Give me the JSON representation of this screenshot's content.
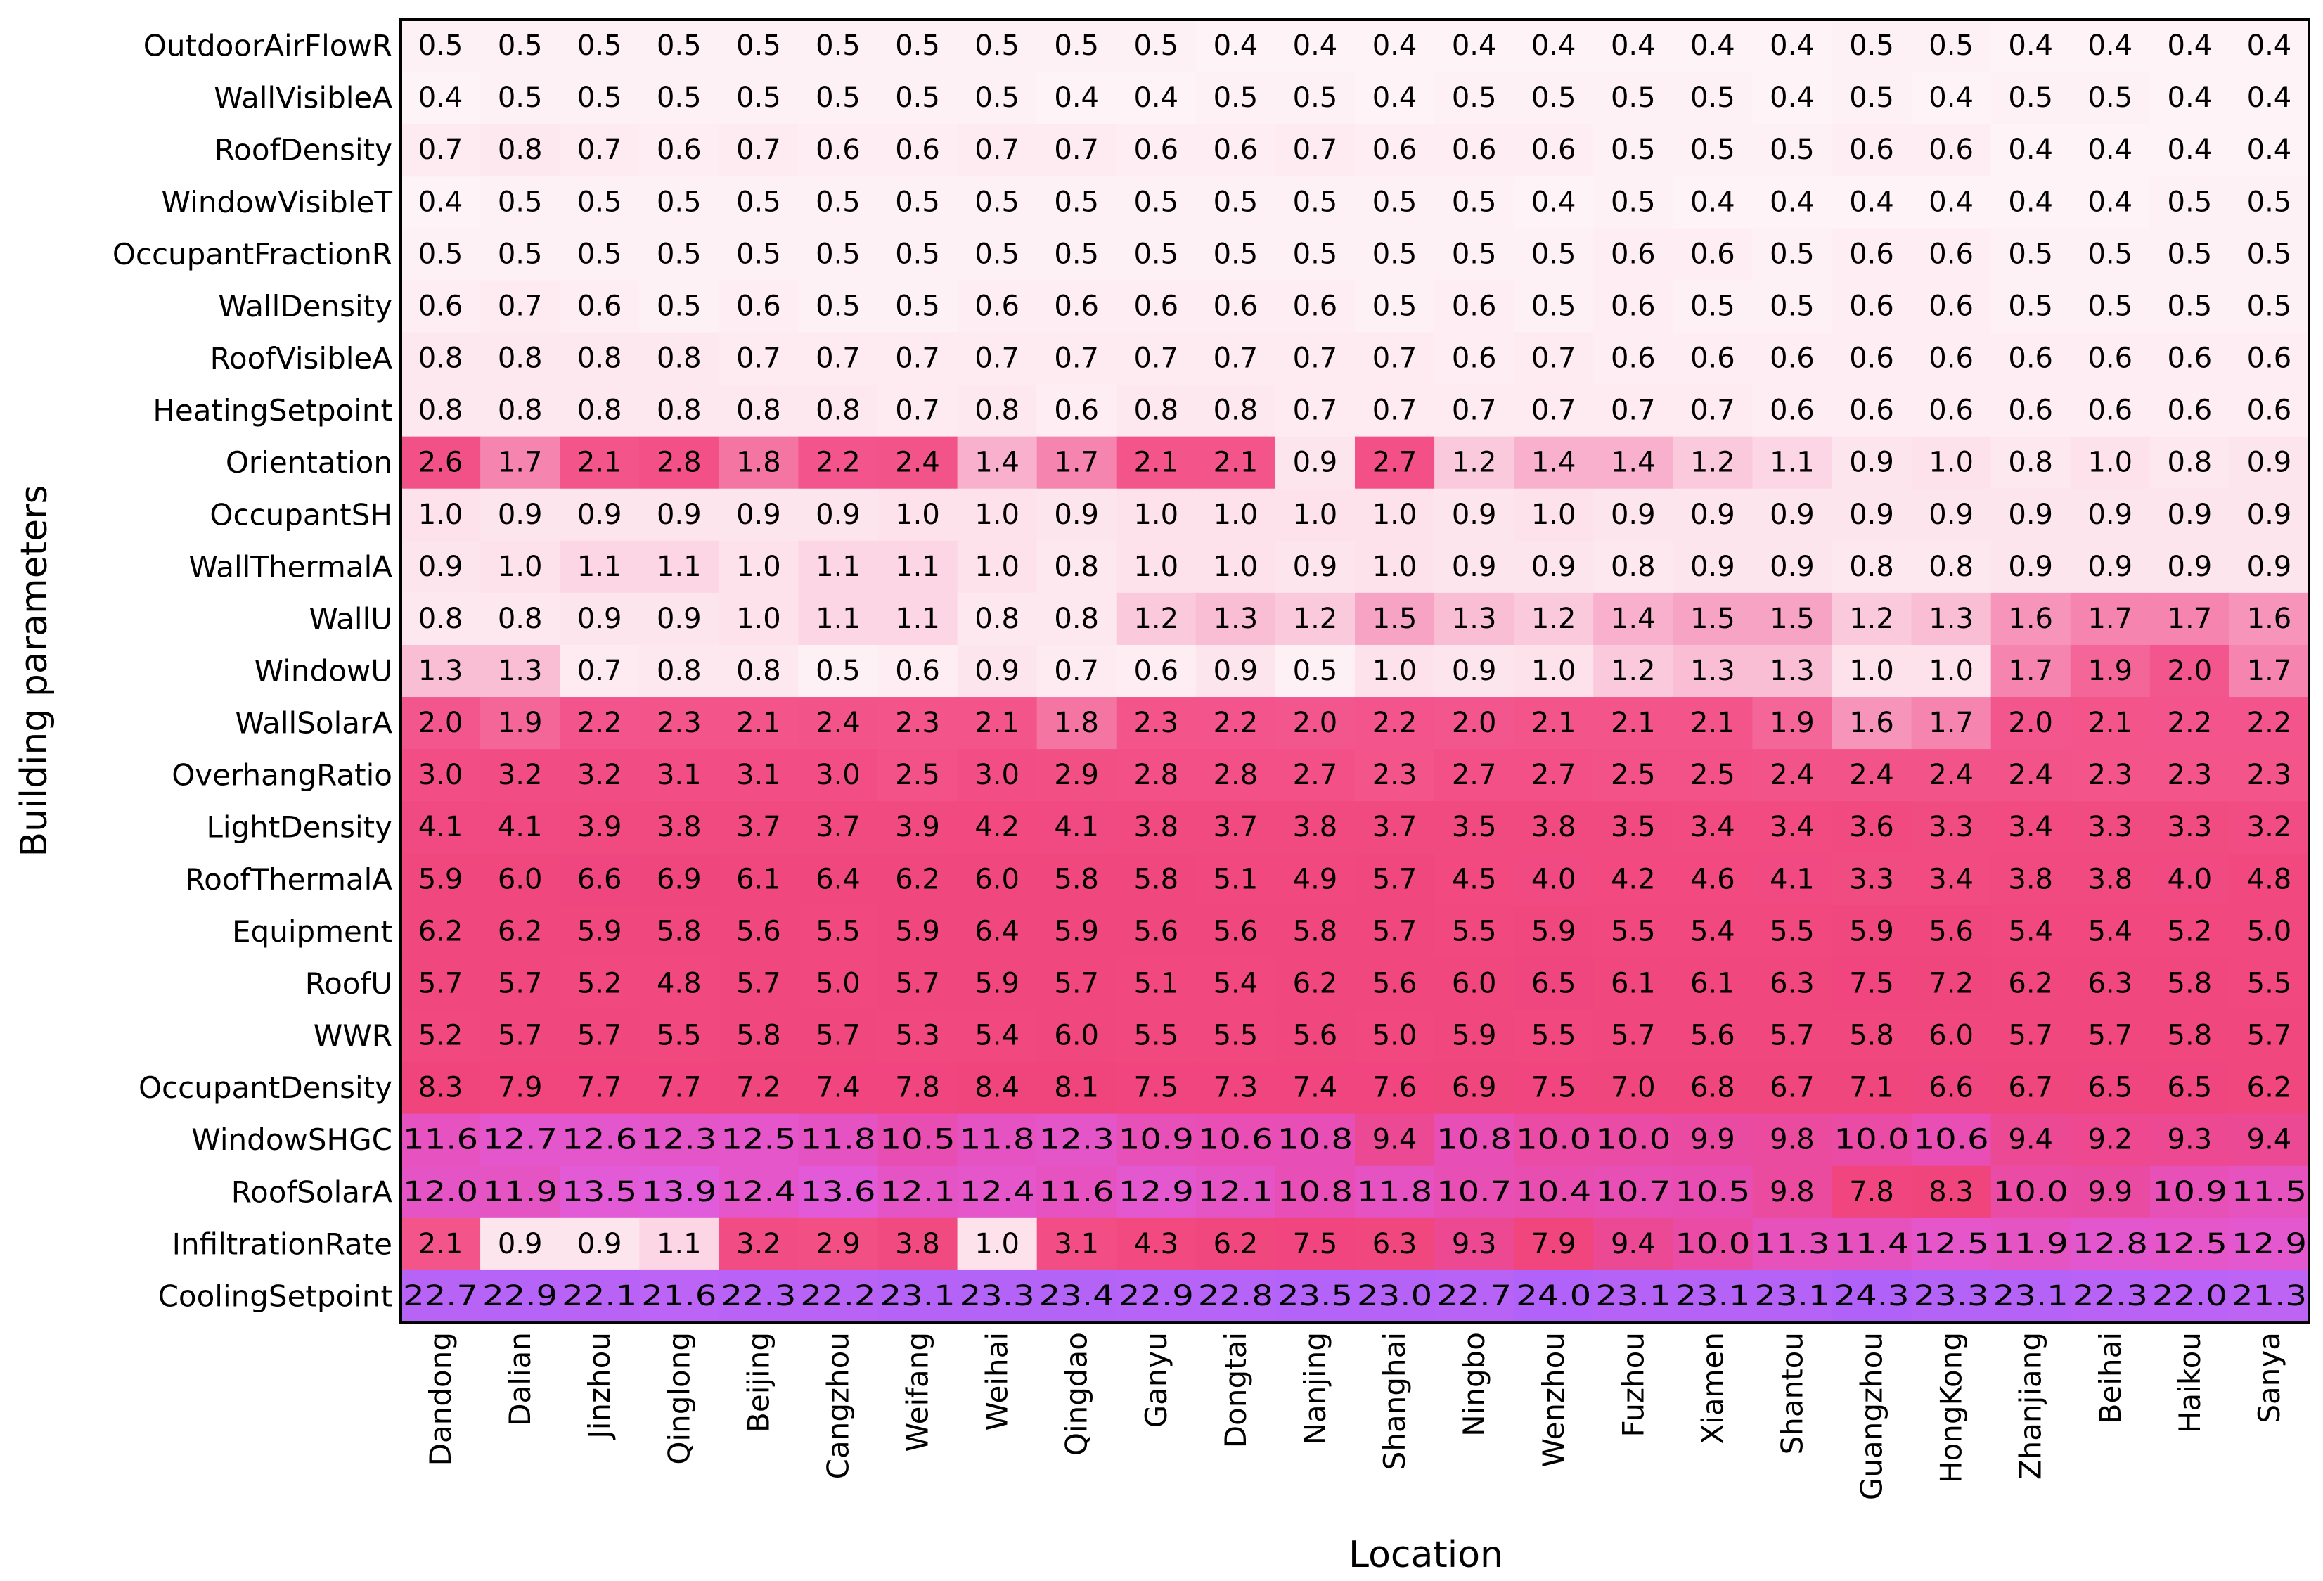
{
  "chart_data": {
    "type": "heatmap",
    "xlabel": "Location",
    "ylabel": "Building parameters",
    "columns": [
      "Dandong",
      "Dalian",
      "Jinzhou",
      "Qinglong",
      "Beijing",
      "Cangzhou",
      "Weifang",
      "Weihai",
      "Qingdao",
      "Ganyu",
      "Dongtai",
      "Nanjing",
      "Shanghai",
      "Ningbo",
      "Wenzhou",
      "Fuzhou",
      "Xiamen",
      "Shantou",
      "Guangzhou",
      "HongKong",
      "Zhanjiang",
      "Beihai",
      "Haikou",
      "Sanya"
    ],
    "rows": [
      "OutdoorAirFlowR",
      "WallVisibleA",
      "RoofDensity",
      "WindowVisibleT",
      "OccupantFractionR",
      "WallDensity",
      "RoofVisibleA",
      "HeatingSetpoint",
      "Orientation",
      "OccupantSH",
      "WallThermalA",
      "WallU",
      "WindowU",
      "WallSolarA",
      "OverhangRatio",
      "LightDensity",
      "RoofThermalA",
      "Equipment",
      "RoofU",
      "WWR",
      "OccupantDensity",
      "WindowSHGC",
      "RoofSolarA",
      "InfiltrationRate",
      "CoolingSetpoint"
    ],
    "values": [
      [
        "0.5",
        "0.5",
        "0.5",
        "0.5",
        "0.5",
        "0.5",
        "0.5",
        "0.5",
        "0.5",
        "0.5",
        "0.4",
        "0.4",
        "0.4",
        "0.4",
        "0.4",
        "0.4",
        "0.4",
        "0.4",
        "0.5",
        "0.5",
        "0.4",
        "0.4",
        "0.4",
        "0.4"
      ],
      [
        "0.4",
        "0.5",
        "0.5",
        "0.5",
        "0.5",
        "0.5",
        "0.5",
        "0.5",
        "0.4",
        "0.4",
        "0.5",
        "0.5",
        "0.4",
        "0.5",
        "0.5",
        "0.5",
        "0.5",
        "0.4",
        "0.5",
        "0.4",
        "0.5",
        "0.5",
        "0.4",
        "0.4"
      ],
      [
        "0.7",
        "0.8",
        "0.7",
        "0.6",
        "0.7",
        "0.6",
        "0.6",
        "0.7",
        "0.7",
        "0.6",
        "0.6",
        "0.7",
        "0.6",
        "0.6",
        "0.6",
        "0.5",
        "0.5",
        "0.5",
        "0.6",
        "0.6",
        "0.4",
        "0.4",
        "0.4",
        "0.4"
      ],
      [
        "0.4",
        "0.5",
        "0.5",
        "0.5",
        "0.5",
        "0.5",
        "0.5",
        "0.5",
        "0.5",
        "0.5",
        "0.5",
        "0.5",
        "0.5",
        "0.5",
        "0.4",
        "0.5",
        "0.4",
        "0.4",
        "0.4",
        "0.4",
        "0.4",
        "0.4",
        "0.5",
        "0.5"
      ],
      [
        "0.5",
        "0.5",
        "0.5",
        "0.5",
        "0.5",
        "0.5",
        "0.5",
        "0.5",
        "0.5",
        "0.5",
        "0.5",
        "0.5",
        "0.5",
        "0.5",
        "0.5",
        "0.6",
        "0.6",
        "0.5",
        "0.6",
        "0.6",
        "0.5",
        "0.5",
        "0.5",
        "0.5"
      ],
      [
        "0.6",
        "0.7",
        "0.6",
        "0.5",
        "0.6",
        "0.5",
        "0.5",
        "0.6",
        "0.6",
        "0.6",
        "0.6",
        "0.6",
        "0.5",
        "0.6",
        "0.5",
        "0.6",
        "0.5",
        "0.5",
        "0.6",
        "0.6",
        "0.5",
        "0.5",
        "0.5",
        "0.5"
      ],
      [
        "0.8",
        "0.8",
        "0.8",
        "0.8",
        "0.7",
        "0.7",
        "0.7",
        "0.7",
        "0.7",
        "0.7",
        "0.7",
        "0.7",
        "0.7",
        "0.6",
        "0.7",
        "0.6",
        "0.6",
        "0.6",
        "0.6",
        "0.6",
        "0.6",
        "0.6",
        "0.6",
        "0.6"
      ],
      [
        "0.8",
        "0.8",
        "0.8",
        "0.8",
        "0.8",
        "0.8",
        "0.7",
        "0.8",
        "0.6",
        "0.8",
        "0.8",
        "0.7",
        "0.7",
        "0.7",
        "0.7",
        "0.7",
        "0.7",
        "0.6",
        "0.6",
        "0.6",
        "0.6",
        "0.6",
        "0.6",
        "0.6"
      ],
      [
        "2.6",
        "1.7",
        "2.1",
        "2.8",
        "1.8",
        "2.2",
        "2.4",
        "1.4",
        "1.7",
        "2.1",
        "2.1",
        "0.9",
        "2.7",
        "1.2",
        "1.4",
        "1.4",
        "1.2",
        "1.1",
        "0.9",
        "1.0",
        "0.8",
        "1.0",
        "0.8",
        "0.9"
      ],
      [
        "1.0",
        "0.9",
        "0.9",
        "0.9",
        "0.9",
        "0.9",
        "1.0",
        "1.0",
        "0.9",
        "1.0",
        "1.0",
        "1.0",
        "1.0",
        "0.9",
        "1.0",
        "0.9",
        "0.9",
        "0.9",
        "0.9",
        "0.9",
        "0.9",
        "0.9",
        "0.9",
        "0.9"
      ],
      [
        "0.9",
        "1.0",
        "1.1",
        "1.1",
        "1.0",
        "1.1",
        "1.1",
        "1.0",
        "0.8",
        "1.0",
        "1.0",
        "0.9",
        "1.0",
        "0.9",
        "0.9",
        "0.8",
        "0.9",
        "0.9",
        "0.8",
        "0.8",
        "0.9",
        "0.9",
        "0.9",
        "0.9"
      ],
      [
        "0.8",
        "0.8",
        "0.9",
        "0.9",
        "1.0",
        "1.1",
        "1.1",
        "0.8",
        "0.8",
        "1.2",
        "1.3",
        "1.2",
        "1.5",
        "1.3",
        "1.2",
        "1.4",
        "1.5",
        "1.5",
        "1.2",
        "1.3",
        "1.6",
        "1.7",
        "1.7",
        "1.6"
      ],
      [
        "1.3",
        "1.3",
        "0.7",
        "0.8",
        "0.8",
        "0.5",
        "0.6",
        "0.9",
        "0.7",
        "0.6",
        "0.9",
        "0.5",
        "1.0",
        "0.9",
        "1.0",
        "1.2",
        "1.3",
        "1.3",
        "1.0",
        "1.0",
        "1.7",
        "1.9",
        "2.0",
        "1.7"
      ],
      [
        "2.0",
        "1.9",
        "2.2",
        "2.3",
        "2.1",
        "2.4",
        "2.3",
        "2.1",
        "1.8",
        "2.3",
        "2.2",
        "2.0",
        "2.2",
        "2.0",
        "2.1",
        "2.1",
        "2.1",
        "1.9",
        "1.6",
        "1.7",
        "2.0",
        "2.1",
        "2.2",
        "2.2"
      ],
      [
        "3.0",
        "3.2",
        "3.2",
        "3.1",
        "3.1",
        "3.0",
        "2.5",
        "3.0",
        "2.9",
        "2.8",
        "2.8",
        "2.7",
        "2.3",
        "2.7",
        "2.7",
        "2.5",
        "2.5",
        "2.4",
        "2.4",
        "2.4",
        "2.4",
        "2.3",
        "2.3",
        "2.3"
      ],
      [
        "4.1",
        "4.1",
        "3.9",
        "3.8",
        "3.7",
        "3.7",
        "3.9",
        "4.2",
        "4.1",
        "3.8",
        "3.7",
        "3.8",
        "3.7",
        "3.5",
        "3.8",
        "3.5",
        "3.4",
        "3.4",
        "3.6",
        "3.3",
        "3.4",
        "3.3",
        "3.3",
        "3.2"
      ],
      [
        "5.9",
        "6.0",
        "6.6",
        "6.9",
        "6.1",
        "6.4",
        "6.2",
        "6.0",
        "5.8",
        "5.8",
        "5.1",
        "4.9",
        "5.7",
        "4.5",
        "4.0",
        "4.2",
        "4.6",
        "4.1",
        "3.3",
        "3.4",
        "3.8",
        "3.8",
        "4.0",
        "4.8"
      ],
      [
        "6.2",
        "6.2",
        "5.9",
        "5.8",
        "5.6",
        "5.5",
        "5.9",
        "6.4",
        "5.9",
        "5.6",
        "5.6",
        "5.8",
        "5.7",
        "5.5",
        "5.9",
        "5.5",
        "5.4",
        "5.5",
        "5.9",
        "5.6",
        "5.4",
        "5.4",
        "5.2",
        "5.0"
      ],
      [
        "5.7",
        "5.7",
        "5.2",
        "4.8",
        "5.7",
        "5.0",
        "5.7",
        "5.9",
        "5.7",
        "5.1",
        "5.4",
        "6.2",
        "5.6",
        "6.0",
        "6.5",
        "6.1",
        "6.1",
        "6.3",
        "7.5",
        "7.2",
        "6.2",
        "6.3",
        "5.8",
        "5.5"
      ],
      [
        "5.2",
        "5.7",
        "5.7",
        "5.5",
        "5.8",
        "5.7",
        "5.3",
        "5.4",
        "6.0",
        "5.5",
        "5.5",
        "5.6",
        "5.0",
        "5.9",
        "5.5",
        "5.7",
        "5.6",
        "5.7",
        "5.8",
        "6.0",
        "5.7",
        "5.7",
        "5.8",
        "5.7"
      ],
      [
        "8.3",
        "7.9",
        "7.7",
        "7.7",
        "7.2",
        "7.4",
        "7.8",
        "8.4",
        "8.1",
        "7.5",
        "7.3",
        "7.4",
        "7.6",
        "6.9",
        "7.5",
        "7.0",
        "6.8",
        "6.7",
        "7.1",
        "6.6",
        "6.7",
        "6.5",
        "6.5",
        "6.2"
      ],
      [
        "11.6",
        "12.7",
        "12.6",
        "12.3",
        "12.5",
        "11.8",
        "10.5",
        "11.8",
        "12.3",
        "10.9",
        "10.6",
        "10.8",
        "9.4",
        "10.8",
        "10.0",
        "10.0",
        "9.9",
        "9.8",
        "10.0",
        "10.6",
        "9.4",
        "9.2",
        "9.3",
        "9.4"
      ],
      [
        "12.0",
        "11.9",
        "13.5",
        "13.9",
        "12.4",
        "13.6",
        "12.1",
        "12.4",
        "11.6",
        "12.9",
        "12.1",
        "10.8",
        "11.8",
        "10.7",
        "10.4",
        "10.7",
        "10.5",
        "9.8",
        "7.8",
        "8.3",
        "10.0",
        "9.9",
        "10.9",
        "11.5"
      ],
      [
        "2.1",
        "0.9",
        "0.9",
        "1.1",
        "3.2",
        "2.9",
        "3.8",
        "1.0",
        "3.1",
        "4.3",
        "6.2",
        "7.5",
        "6.3",
        "9.3",
        "7.9",
        "9.4",
        "10.0",
        "11.3",
        "11.4",
        "12.5",
        "11.9",
        "12.8",
        "12.5",
        "12.9"
      ],
      [
        "22.7",
        "22.9",
        "22.1",
        "21.6",
        "22.3",
        "22.2",
        "23.1",
        "23.3",
        "23.4",
        "22.9",
        "22.8",
        "23.5",
        "23.0",
        "22.7",
        "24.0",
        "23.1",
        "23.1",
        "23.1",
        "24.3",
        "23.3",
        "23.1",
        "22.3",
        "22.0",
        "21.3"
      ]
    ]
  }
}
